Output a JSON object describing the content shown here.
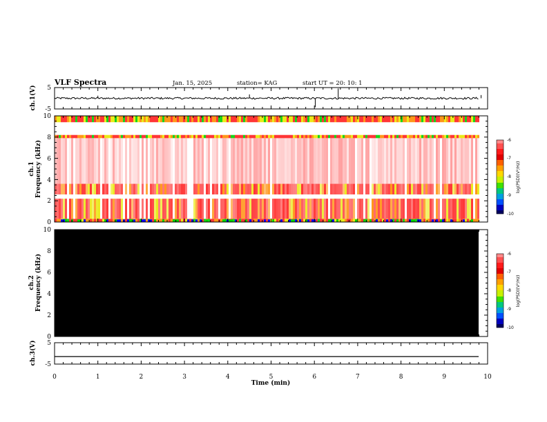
{
  "header": {
    "title": "VLF Spectra",
    "date": "Jan. 15, 2025",
    "station": "station= KAG",
    "start_ut": "start UT =   20: 10: 1"
  },
  "colors": {
    "spec_bg": "#ffffff",
    "spec_red": "#ff2020",
    "spec_orange": "#ff8c00",
    "spec_yellow": "#e8e800",
    "spec_green": "#00d000",
    "spec_blue": "#0000ff",
    "ch2_fill": "#000000"
  },
  "chart_data": [
    {
      "type": "line",
      "panel": "ch.1 waveform",
      "ylabel": "ch.1(V)",
      "ylim": [
        -5,
        5
      ],
      "y_ticks": [
        "5",
        "-5"
      ],
      "xlim": [
        0,
        10
      ],
      "baseline": 0,
      "spikes": [
        {
          "x": 6.55,
          "y": 4.6
        },
        {
          "x": 6.02,
          "y": -4.2
        },
        {
          "x": 4.5,
          "y": 1.8
        },
        {
          "x": 1.0,
          "y": 1.2
        },
        {
          "x": 9.85,
          "y": 1.5
        }
      ]
    },
    {
      "type": "heatmap",
      "panel": "ch.1 spectrogram",
      "ylabel_line1": "ch.1",
      "ylabel_line2": "Frequency (kHz)",
      "ylim": [
        0,
        10
      ],
      "y_ticks": [
        "10",
        "8",
        "6",
        "4",
        "2",
        "0"
      ],
      "xlim": [
        0,
        10
      ],
      "colorbar": {
        "label": "log(PSD)(V²/Hz)",
        "ticks": [
          "-6",
          "-7",
          "-8",
          "-9",
          "-10"
        ],
        "range": [
          -10,
          -6
        ]
      },
      "bands": [
        {
          "from": 9.4,
          "to": 10.0,
          "level": "strong"
        },
        {
          "from": 7.9,
          "to": 8.2,
          "level": "strong"
        },
        {
          "from": 2.6,
          "to": 3.6,
          "level": "medium"
        },
        {
          "from": 0.3,
          "to": 2.2,
          "level": "medium"
        },
        {
          "from": 0.0,
          "to": 0.3,
          "level": "strong"
        }
      ]
    },
    {
      "type": "heatmap",
      "panel": "ch.2 spectrogram",
      "ylabel_line1": "ch.2",
      "ylabel_line2": "Frequency (kHz)",
      "ylim": [
        0,
        10
      ],
      "y_ticks": [
        "10",
        "8",
        "6",
        "4",
        "2",
        "0"
      ],
      "xlim": [
        0,
        10
      ],
      "colorbar": {
        "label": "log(PSD)(V²/Hz)",
        "ticks": [
          "-6",
          "-7",
          "-8",
          "-9",
          "-10"
        ],
        "range": [
          -10,
          -6
        ]
      }
    },
    {
      "type": "line",
      "panel": "ch.3 waveform",
      "ylabel": "ch.3(V)",
      "ylim": [
        -5,
        5
      ],
      "y_ticks": [
        "5",
        "-5"
      ],
      "xlim": [
        0,
        10
      ],
      "constant_value": -1.5
    }
  ],
  "x_axis": {
    "label": "Time (min)",
    "ticks": [
      "0",
      "1",
      "2",
      "3",
      "4",
      "5",
      "6",
      "7",
      "8",
      "9",
      "10"
    ]
  }
}
